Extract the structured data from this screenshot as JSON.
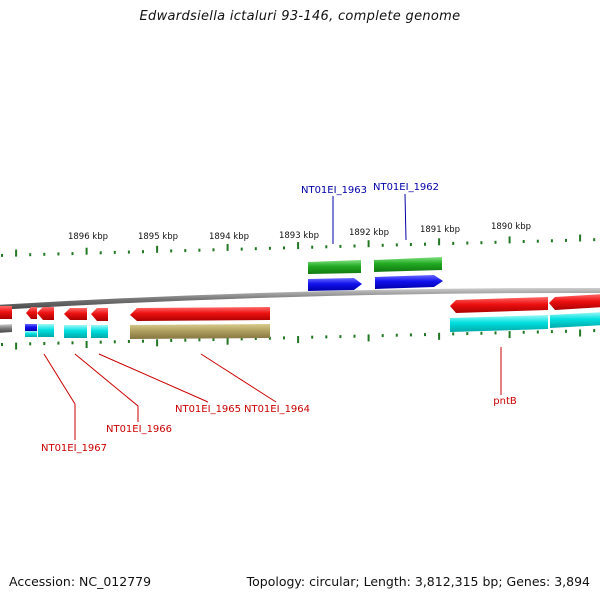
{
  "title": "Edwardsiella ictaluri 93-146, complete genome",
  "footer": {
    "accession": "Accession: NC_012779",
    "summary": "Topology: circular; Length: 3,812,315 bp; Genes: 3,894"
  },
  "colors": {
    "forward_cds": "#ee1111",
    "reverse_cds": "#1111ee",
    "forward_gene": "#00d8d8",
    "reverse_gene": "#22aa22",
    "misc": "#b0a060",
    "label_red": "#cc0000",
    "label_blue": "#0000aa",
    "ticks": "#227722",
    "backbone": "#888888"
  },
  "ticks": {
    "labels": [
      "1896 kbp",
      "1895 kbp",
      "1894 kbp",
      "1893 kbp",
      "1892 kbp",
      "1891 kbp",
      "1890 kbp"
    ]
  },
  "labels": {
    "top": [
      "NT01EI_1963",
      "NT01EI_1962"
    ],
    "bottom": [
      "NT01EI_1967",
      "NT01EI_1966",
      "NT01EI_1965",
      "NT01EI_1964",
      "pntB"
    ]
  }
}
